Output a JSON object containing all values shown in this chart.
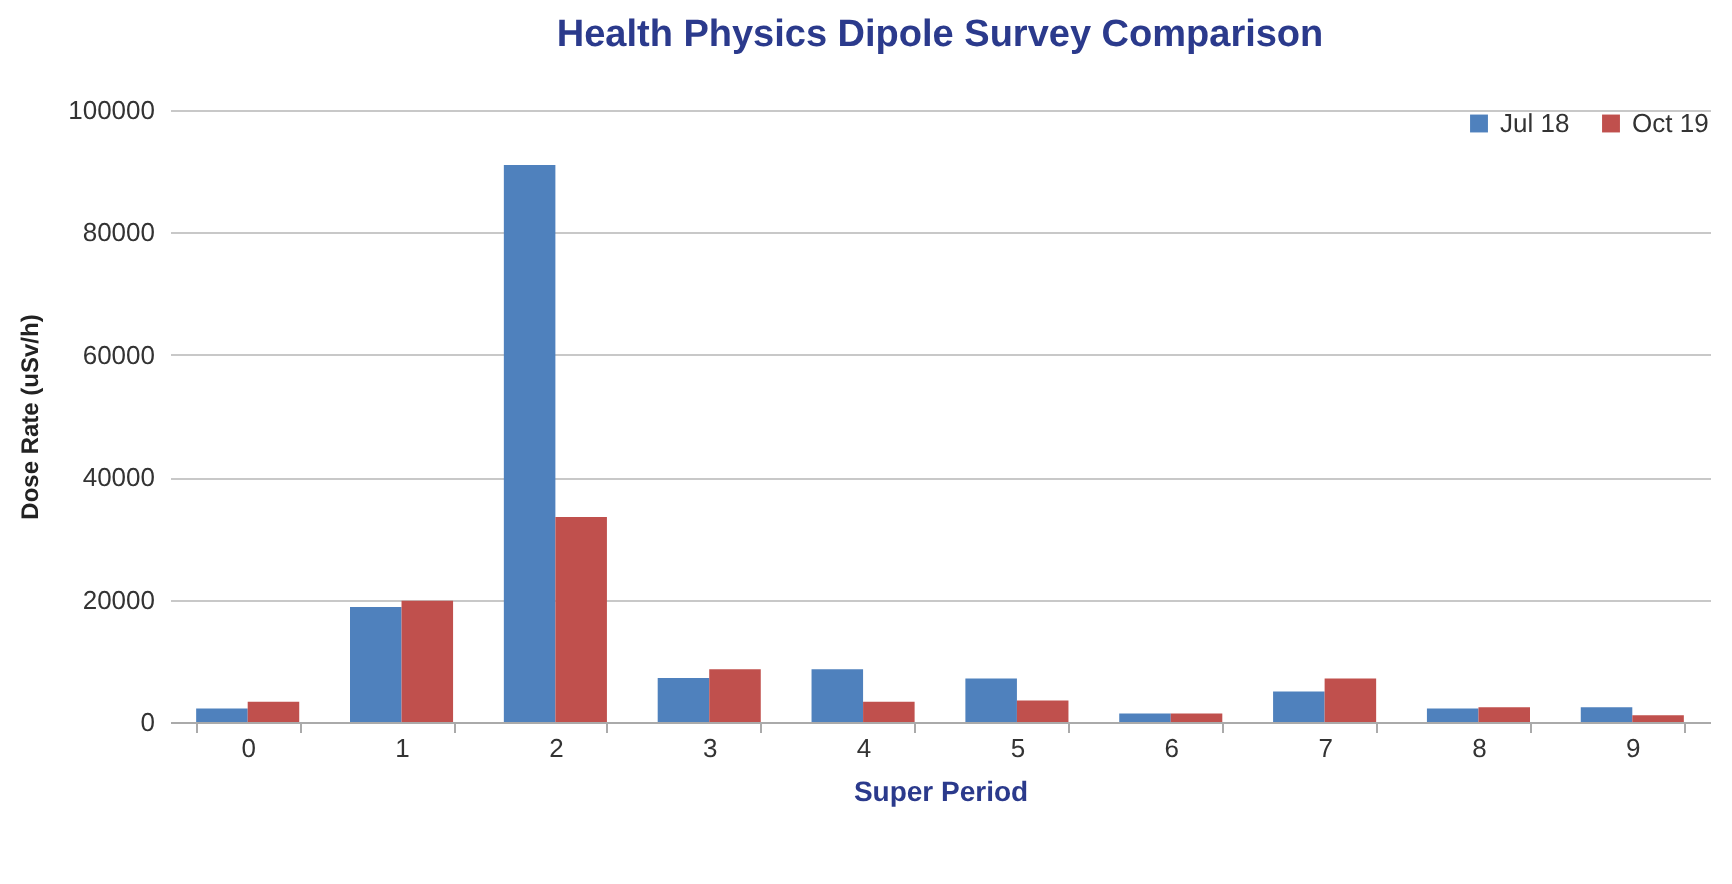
{
  "chart_data": {
    "type": "bar",
    "title": "Health Physics Dipole Survey Comparison",
    "xlabel": "Super Period",
    "ylabel": "Dose Rate (uSv/h)",
    "categories": [
      "0",
      "1",
      "2",
      "3",
      "4",
      "5",
      "6",
      "7",
      "8",
      "9"
    ],
    "series": [
      {
        "name": "Jul 18",
        "color": "#4f81bd",
        "values": [
          2200,
          18800,
          91000,
          7200,
          8600,
          7100,
          1400,
          5000,
          2200,
          2400
        ]
      },
      {
        "name": "Oct 19",
        "color": "#c0504d",
        "values": [
          3300,
          19800,
          33500,
          8600,
          3300,
          3500,
          1400,
          7100,
          2400,
          1100
        ]
      }
    ],
    "ylim": [
      0,
      100000
    ],
    "yticks": [
      0,
      20000,
      40000,
      60000,
      80000,
      100000
    ],
    "grid": "y",
    "legend": "top right"
  }
}
